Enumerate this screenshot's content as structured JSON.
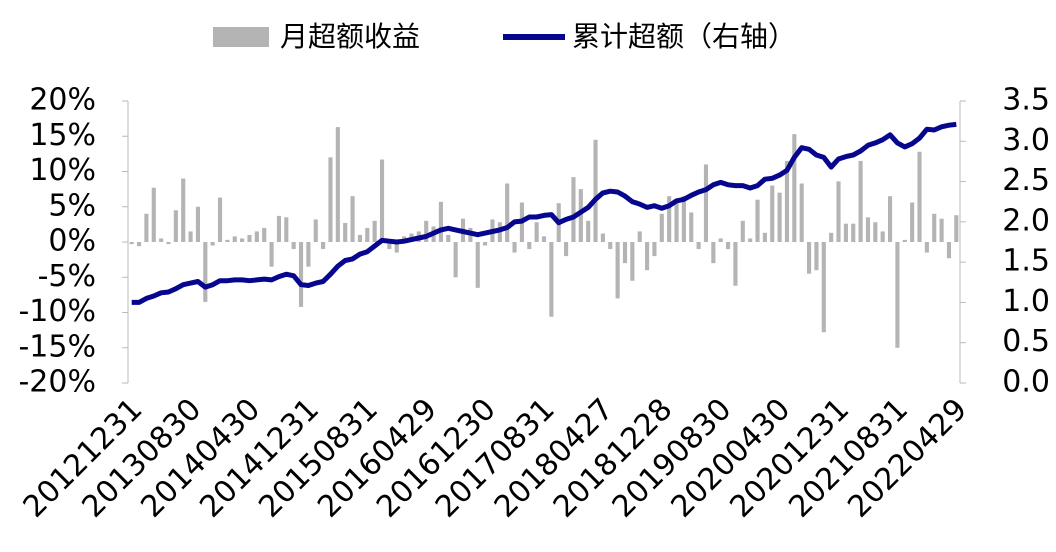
{
  "chart_data": {
    "type": "bar_line",
    "categories": [
      "20121231",
      null,
      null,
      null,
      null,
      null,
      null,
      null,
      "20130830",
      null,
      null,
      null,
      null,
      null,
      null,
      null,
      "20140430",
      null,
      null,
      null,
      null,
      null,
      null,
      null,
      "20141231",
      null,
      null,
      null,
      null,
      null,
      null,
      null,
      "20150831",
      null,
      null,
      null,
      null,
      null,
      null,
      null,
      "20160429",
      null,
      null,
      null,
      null,
      null,
      null,
      null,
      "20161230",
      null,
      null,
      null,
      null,
      null,
      null,
      null,
      "20170831",
      null,
      null,
      null,
      null,
      null,
      null,
      null,
      "20180427",
      null,
      null,
      null,
      null,
      null,
      null,
      null,
      "20181228",
      null,
      null,
      null,
      null,
      null,
      null,
      null,
      "20190830",
      null,
      null,
      null,
      null,
      null,
      null,
      null,
      "20200430",
      null,
      null,
      null,
      null,
      null,
      null,
      null,
      "20201231",
      null,
      null,
      null,
      null,
      null,
      null,
      null,
      "20210831",
      null,
      null,
      null,
      null,
      null,
      null,
      null,
      "20220429"
    ],
    "series": [
      {
        "name": "月超额收益",
        "type": "bar",
        "color": "#b4b4b4",
        "values": [
          -0.3,
          -0.6,
          4.0,
          7.7,
          0.5,
          -0.3,
          4.5,
          9.0,
          1.5,
          5.0,
          -8.5,
          -0.5,
          6.3,
          0.3,
          0.8,
          0.5,
          1.0,
          1.5,
          2.0,
          -3.5,
          3.7,
          3.5,
          -1.0,
          -9.2,
          -3.5,
          3.2,
          -1.0,
          12.0,
          16.3,
          2.7,
          6.5,
          1.0,
          2.0,
          3.0,
          11.7,
          -1.0,
          -1.5,
          0.8,
          1.2,
          1.5,
          3.0,
          2.2,
          5.7,
          1.0,
          -5.0,
          3.3,
          2.0,
          -6.5,
          -0.5,
          3.2,
          2.8,
          8.3,
          -1.5,
          5.6,
          -1.0,
          2.8,
          0.8,
          -10.6,
          5.5,
          -2.0,
          9.2,
          7.5,
          3.0,
          14.5,
          1.2,
          -1.0,
          -8.0,
          -3.0,
          -5.5,
          1.5,
          -4.0,
          -2.0,
          4.0,
          6.5,
          5.8,
          6.5,
          4.2,
          -1.0,
          11.0,
          -3.0,
          0.5,
          -1.0,
          -6.2,
          3.0,
          0.5,
          6.0,
          1.3,
          8.0,
          7.0,
          11.5,
          15.3,
          8.3,
          -4.5,
          -4.0,
          -12.8,
          1.3,
          8.6,
          2.6,
          2.6,
          11.5,
          3.5,
          2.8,
          1.5,
          6.5,
          -15.0,
          0.3,
          5.6,
          12.8,
          -1.5,
          4.0,
          3.3,
          -2.3,
          3.8
        ]
      },
      {
        "name": "累计超额（右轴）",
        "type": "line",
        "axis": "y2",
        "color": "#06068f",
        "values": [
          1.0,
          1.0,
          1.05,
          1.08,
          1.12,
          1.13,
          1.17,
          1.22,
          1.24,
          1.26,
          1.19,
          1.22,
          1.27,
          1.27,
          1.28,
          1.28,
          1.27,
          1.28,
          1.29,
          1.28,
          1.32,
          1.35,
          1.33,
          1.22,
          1.21,
          1.24,
          1.26,
          1.35,
          1.45,
          1.52,
          1.54,
          1.6,
          1.63,
          1.7,
          1.77,
          1.76,
          1.75,
          1.76,
          1.78,
          1.8,
          1.82,
          1.86,
          1.9,
          1.92,
          1.9,
          1.88,
          1.86,
          1.84,
          1.86,
          1.88,
          1.9,
          1.93,
          2.0,
          2.01,
          2.06,
          2.06,
          2.08,
          2.09,
          1.99,
          2.03,
          2.06,
          2.12,
          2.18,
          2.28,
          2.36,
          2.38,
          2.37,
          2.32,
          2.25,
          2.22,
          2.18,
          2.2,
          2.17,
          2.2,
          2.26,
          2.28,
          2.33,
          2.37,
          2.4,
          2.46,
          2.49,
          2.46,
          2.45,
          2.45,
          2.42,
          2.45,
          2.53,
          2.54,
          2.58,
          2.64,
          2.8,
          2.92,
          2.9,
          2.83,
          2.8,
          2.68,
          2.78,
          2.81,
          2.83,
          2.88,
          2.95,
          2.98,
          3.02,
          3.08,
          2.98,
          2.93,
          2.97,
          3.04,
          3.15,
          3.14,
          3.18,
          3.2,
          3.21
        ]
      }
    ],
    "ylim": [
      -20,
      20
    ],
    "yticks": [
      {
        "value": -20,
        "label": "-20%"
      },
      {
        "value": -15,
        "label": "-15%"
      },
      {
        "value": -10,
        "label": "-10%"
      },
      {
        "value": -5,
        "label": "-5%"
      },
      {
        "value": 0,
        "label": "0%"
      },
      {
        "value": 5,
        "label": "5%"
      },
      {
        "value": 10,
        "label": "10%"
      },
      {
        "value": 15,
        "label": "15%"
      },
      {
        "value": 20,
        "label": "20%"
      }
    ],
    "y2lim": [
      0,
      3.5
    ],
    "y2ticks": [
      {
        "value": 0,
        "label": "0.0"
      },
      0.5,
      {
        "value": 1,
        "label": "1.0"
      },
      1.5,
      {
        "value": 2,
        "label": "2.0"
      },
      2.5,
      {
        "value": 3,
        "label": "3.0"
      },
      3.5
    ],
    "legend": "top"
  }
}
